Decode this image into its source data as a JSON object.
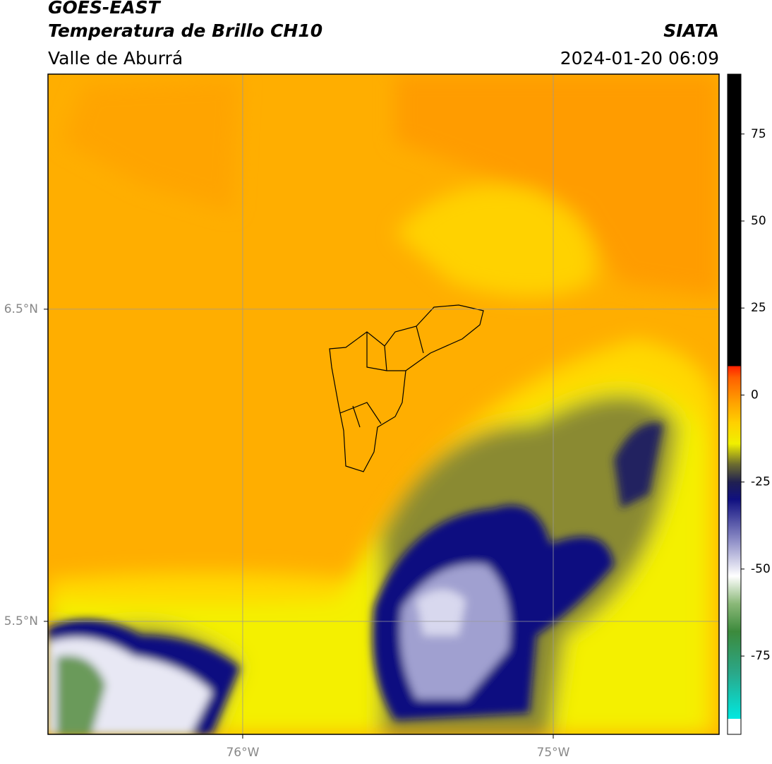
{
  "header": {
    "title": "GOES-EAST",
    "subtitle": "Temperatura de Brillo CH10",
    "region": "Valle de Aburrá",
    "source": "SIATA",
    "datetime": "2024-01-20 06:09"
  },
  "map": {
    "lon_range": [
      -76.627,
      -74.466
    ],
    "lat_range": [
      5.138,
      7.253
    ],
    "lon_ticks": [
      {
        "value": -76,
        "label": "76°W"
      },
      {
        "value": -75,
        "label": "75°W"
      }
    ],
    "lat_ticks": [
      {
        "value": 6.5,
        "label": "6.5°N"
      },
      {
        "value": 5.5,
        "label": "5.5°N"
      }
    ],
    "grid": true
  },
  "colorbar": {
    "range": [
      -97.5,
      92.2
    ],
    "ticks": [
      75,
      50,
      25,
      0,
      -25,
      -50,
      -75
    ],
    "stops": [
      {
        "value": -97.5,
        "color": "#ffffff"
      },
      {
        "value": -93,
        "color": "#ffffff"
      },
      {
        "value": -93,
        "color": "#00e8e0"
      },
      {
        "value": -80,
        "color": "#2aa88a"
      },
      {
        "value": -68,
        "color": "#3c8a3c"
      },
      {
        "value": -60,
        "color": "#8ab878"
      },
      {
        "value": -52,
        "color": "#ffffff"
      },
      {
        "value": -42,
        "color": "#9090c8"
      },
      {
        "value": -30,
        "color": "#101080"
      },
      {
        "value": -25,
        "color": "#202050"
      },
      {
        "value": -20,
        "color": "#6a6a30"
      },
      {
        "value": -14,
        "color": "#f0f000"
      },
      {
        "value": -8,
        "color": "#ffd000"
      },
      {
        "value": -2,
        "color": "#ffa000"
      },
      {
        "value": 5,
        "color": "#ff6000"
      },
      {
        "value": 8.3,
        "color": "#ff2000"
      },
      {
        "value": 8.3,
        "color": "#000000"
      },
      {
        "value": 92.2,
        "color": "#000000"
      }
    ]
  }
}
